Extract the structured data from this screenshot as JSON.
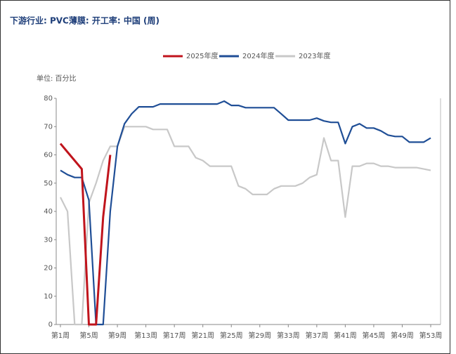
{
  "chart_data": {
    "type": "line",
    "title": "下游行业: PVC薄膜: 开工率: 中国 (周)",
    "y_label": "单位: 百分比",
    "categories": [
      "第1周",
      null,
      null,
      null,
      "第5周",
      null,
      null,
      null,
      "第9周",
      null,
      null,
      null,
      "第13周",
      null,
      null,
      null,
      "第17周",
      null,
      null,
      null,
      "第21周",
      null,
      null,
      null,
      "第25周",
      null,
      null,
      null,
      "第29周",
      null,
      null,
      null,
      "第33周",
      null,
      null,
      null,
      "第37周",
      null,
      null,
      null,
      "第41周",
      null,
      null,
      null,
      "第45周",
      null,
      null,
      null,
      "第49周",
      null,
      null,
      null,
      "第53周"
    ],
    "series": [
      {
        "name": "2025年度",
        "color": "#c0141c",
        "values": [
          64,
          61,
          58,
          55,
          0,
          0,
          38,
          60,
          null,
          null,
          null,
          null,
          null,
          null,
          null,
          null,
          null,
          null,
          null,
          null,
          null,
          null,
          null,
          null,
          null,
          null,
          null,
          null,
          null,
          null,
          null,
          null,
          null,
          null,
          null,
          null,
          null,
          null,
          null,
          null,
          null,
          null,
          null,
          null,
          null,
          null,
          null,
          null,
          null,
          null,
          null,
          null,
          null
        ]
      },
      {
        "name": "2024年度",
        "color": "#1f4e96",
        "values": [
          54.5,
          53,
          52,
          52,
          44,
          0,
          0,
          40,
          63,
          71,
          74.5,
          77,
          77,
          77,
          78,
          78,
          78,
          78,
          78,
          78,
          78,
          78,
          78,
          79,
          77.5,
          77.5,
          76.7,
          76.7,
          76.7,
          76.7,
          76.7,
          74.5,
          72.3,
          72.3,
          72.3,
          72.3,
          73,
          72,
          71.5,
          71.5,
          64,
          70,
          71,
          69.5,
          69.5,
          68.5,
          67,
          66.5,
          66.5,
          64.5,
          64.5,
          64.5,
          66
        ]
      },
      {
        "name": "2023年度",
        "color": "#c8c8c8",
        "values": [
          45,
          40,
          0,
          0,
          43,
          50,
          58,
          63,
          63,
          70,
          70,
          70,
          70,
          69,
          69,
          69,
          63,
          63,
          63,
          59,
          58,
          56,
          56,
          56,
          56,
          49,
          48,
          46,
          46,
          46,
          48,
          49,
          49,
          49,
          50,
          52,
          53,
          66,
          58,
          58,
          38,
          56,
          56,
          57,
          57,
          56,
          56,
          55.5,
          55.5,
          55.5,
          55.5,
          55,
          54.5
        ]
      }
    ],
    "ylim": [
      0,
      80
    ],
    "yticks": [
      0,
      10,
      20,
      30,
      40,
      50,
      60,
      70,
      80
    ]
  }
}
